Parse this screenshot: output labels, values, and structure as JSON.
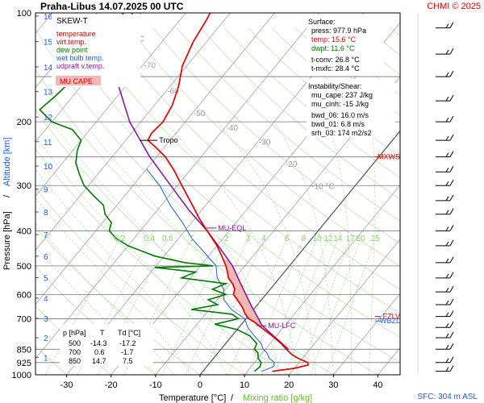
{
  "header": {
    "title": "Praha-Libus   14.07.2025 00 UTC",
    "credit": "CHMI © 2025"
  },
  "legend": {
    "chart_type": "SKEW-T",
    "items": [
      {
        "label": "temperature",
        "color": "#e00000"
      },
      {
        "label": "virt.temp.",
        "color": "#e00000"
      },
      {
        "label": "dew point",
        "color": "#007a00"
      },
      {
        "label": "wet bulb temp.",
        "color": "#1f5fd6"
      },
      {
        "label": "udpraft v.temp.",
        "color": "#8a1a9b"
      }
    ],
    "cape_badge": "MU CAPE"
  },
  "surface": {
    "heading": "Surface:",
    "press": "press: 977.9 hPa",
    "temp": "temp: 15.6 °C",
    "dwpt": "dwpt: 11.6 °C",
    "tconv": "t-conv: 26.8 °C",
    "tmxfc": "t-mxfc: 28.4 °C"
  },
  "instability": {
    "heading": "Instability/Shear:",
    "items": [
      "mu_cape: 237 J/kg",
      "mu_cinh: -15 J/kg",
      "bwd_06: 16.0 m/s",
      "bwd_01: 6.8 m/s",
      "srh_03: 174 m2/s2"
    ]
  },
  "level_table": {
    "headers": [
      "p [hPa]",
      "T",
      "Td [°C]"
    ],
    "rows": [
      [
        "500",
        "-14.3",
        "-17.2"
      ],
      [
        "700",
        "0.6",
        "-1.7"
      ],
      [
        "850",
        "14.7",
        "7.5"
      ]
    ]
  },
  "footer": {
    "sfc": "SFC: 304 m ASL"
  },
  "chart_data": {
    "type": "line",
    "title": "Praha-Libus   14.07.2025 00 UTC",
    "xlabel": "Temperature [°C]",
    "xlabel_sep": "/",
    "xlabel2": "Mixing ratio [g/kg]",
    "ylabel": "Pressure [hPa]",
    "ylabel_sep": "/",
    "ylabel2": "Altitude [km]",
    "xlim": [
      -37,
      45
    ],
    "ylim": [
      1000,
      100
    ],
    "y_scale": "log",
    "grid": true,
    "x_ticks": [
      -30,
      -20,
      -10,
      0,
      10,
      20,
      30,
      40
    ],
    "p_ticks": [
      100,
      200,
      300,
      400,
      500,
      600,
      700,
      850,
      925,
      1000
    ],
    "km_ticks": [
      {
        "km": "1",
        "p": 895
      },
      {
        "km": "2",
        "p": 790
      },
      {
        "km": "3",
        "p": 698
      },
      {
        "km": "4",
        "p": 614
      },
      {
        "km": "5",
        "p": 539
      },
      {
        "km": "6",
        "p": 470
      },
      {
        "km": "7",
        "p": 410
      },
      {
        "km": "8",
        "p": 355
      },
      {
        "km": "9",
        "p": 307
      },
      {
        "km": "10",
        "p": 265
      },
      {
        "km": "11",
        "p": 227
      },
      {
        "km": "12",
        "p": 194
      },
      {
        "km": "13",
        "p": 165
      },
      {
        "km": "14",
        "p": 141
      },
      {
        "km": "15",
        "p": 120
      },
      {
        "km": "16",
        "p": 102
      }
    ],
    "isotherm_labels": [
      {
        "t": -80,
        "label": "-80 °C"
      },
      {
        "t": -70,
        "label": "-70"
      },
      {
        "t": -60,
        "label": "-60"
      },
      {
        "t": -50,
        "label": "-50"
      },
      {
        "t": -40,
        "label": "-40"
      },
      {
        "t": -30,
        "label": "-30"
      },
      {
        "t": -20,
        "label": "-20"
      },
      {
        "t": -10,
        "label": "-10 °C"
      }
    ],
    "mixing_ratio_labels": [
      "0.2",
      "0.4",
      "0.6",
      "1",
      "2",
      "3",
      "4",
      "6",
      "8",
      "10",
      "12",
      "14",
      "17",
      "20",
      "25"
    ],
    "mixing_ratios": [
      0.2,
      0.4,
      0.6,
      1,
      2,
      3,
      4,
      6,
      8,
      10,
      12,
      14,
      17,
      20,
      25
    ],
    "series": [
      {
        "name": "temperature",
        "color": "#e00000",
        "points": [
          [
            978,
            15.6
          ],
          [
            960,
            20
          ],
          [
            940,
            22.5
          ],
          [
            925,
            22
          ],
          [
            900,
            19
          ],
          [
            880,
            17
          ],
          [
            850,
            14.7
          ],
          [
            820,
            12.5
          ],
          [
            780,
            9
          ],
          [
            740,
            5
          ],
          [
            715,
            2.5
          ],
          [
            700,
            0.6
          ],
          [
            680,
            -1
          ],
          [
            650,
            -3
          ],
          [
            620,
            -5.5
          ],
          [
            600,
            -7.3
          ],
          [
            580,
            -8
          ],
          [
            560,
            -9.5
          ],
          [
            540,
            -11.5
          ],
          [
            520,
            -12.8
          ],
          [
            500,
            -14.3
          ],
          [
            470,
            -17
          ],
          [
            440,
            -20
          ],
          [
            400,
            -25
          ],
          [
            370,
            -29
          ],
          [
            340,
            -33
          ],
          [
            300,
            -39
          ],
          [
            270,
            -44
          ],
          [
            250,
            -48
          ],
          [
            235,
            -52
          ],
          [
            225,
            -55
          ],
          [
            215,
            -55.5
          ],
          [
            200,
            -55
          ],
          [
            180,
            -56
          ],
          [
            160,
            -58
          ],
          [
            140,
            -61
          ],
          [
            120,
            -63
          ],
          [
            105,
            -64
          ],
          [
            100,
            -64.5
          ]
        ]
      },
      {
        "name": "dew point",
        "color": "#007a00",
        "points": [
          [
            978,
            11.6
          ],
          [
            950,
            12
          ],
          [
            925,
            11.5
          ],
          [
            900,
            10
          ],
          [
            870,
            9
          ],
          [
            850,
            7.5
          ],
          [
            820,
            7
          ],
          [
            780,
            4
          ],
          [
            750,
            0
          ],
          [
            725,
            -6
          ],
          [
            700,
            -1.7
          ],
          [
            680,
            -4
          ],
          [
            660,
            -14
          ],
          [
            640,
            -9
          ],
          [
            620,
            -12
          ],
          [
            600,
            -9
          ],
          [
            580,
            -13
          ],
          [
            560,
            -11
          ],
          [
            540,
            -22
          ],
          [
            520,
            -20
          ],
          [
            505,
            -30
          ],
          [
            500,
            -17.2
          ],
          [
            490,
            -24
          ],
          [
            470,
            -32
          ],
          [
            455,
            -36
          ],
          [
            440,
            -40
          ],
          [
            420,
            -44
          ],
          [
            400,
            -47
          ],
          [
            380,
            -48
          ],
          [
            360,
            -51
          ],
          [
            340,
            -53
          ],
          [
            320,
            -57
          ],
          [
            300,
            -61
          ],
          [
            280,
            -64
          ],
          [
            260,
            -67
          ],
          [
            240,
            -69
          ],
          [
            225,
            -70
          ],
          [
            210,
            -74
          ],
          [
            200,
            -80
          ],
          [
            185,
            -85
          ],
          [
            170,
            -84
          ],
          [
            150,
            -83
          ],
          [
            130,
            -82
          ],
          [
            115,
            -83
          ],
          [
            100,
            -84
          ]
        ]
      },
      {
        "name": "wet bulb temp.",
        "color": "#1f5fd6",
        "points": [
          [
            978,
            13.2
          ],
          [
            950,
            15
          ],
          [
            925,
            14.5
          ],
          [
            900,
            12.5
          ],
          [
            870,
            11
          ],
          [
            850,
            9.5
          ],
          [
            820,
            8
          ],
          [
            780,
            5
          ],
          [
            740,
            2
          ],
          [
            700,
            -0.3
          ],
          [
            660,
            -5
          ],
          [
            620,
            -8.5
          ],
          [
            580,
            -10.5
          ],
          [
            540,
            -14
          ],
          [
            500,
            -16.5
          ],
          [
            460,
            -21.5
          ],
          [
            420,
            -27
          ],
          [
            380,
            -32
          ],
          [
            340,
            -38
          ],
          [
            300,
            -44
          ],
          [
            270,
            -50
          ]
        ]
      },
      {
        "name": "udpraft v.temp.",
        "color": "#8a1a9b",
        "points": [
          [
            850,
            15.2
          ],
          [
            800,
            11
          ],
          [
            760,
            7.5
          ],
          [
            730,
            4.8
          ],
          [
            700,
            2.8
          ],
          [
            650,
            -0.8
          ],
          [
            600,
            -4.5
          ],
          [
            550,
            -8.5
          ],
          [
            500,
            -12.8
          ],
          [
            450,
            -18.5
          ],
          [
            400,
            -25
          ],
          [
            350,
            -33
          ],
          [
            300,
            -41.5
          ],
          [
            250,
            -51.5
          ],
          [
            200,
            -62.5
          ],
          [
            150,
            -74
          ],
          [
            100,
            -82
          ]
        ]
      }
    ],
    "cape_region": {
      "p_from": 730,
      "p_to": 480,
      "color": "#f2b8b8"
    },
    "markers": [
      {
        "label": "Tropo",
        "p": 225,
        "t": -55
      },
      {
        "label": "MU-EQL",
        "p": 393,
        "t": -24.5
      },
      {
        "label": "MU-LFC",
        "p": 732,
        "t": 4.8
      }
    ],
    "right_labels": [
      {
        "label": "MXWS",
        "p": 250,
        "color": "#e00000"
      },
      {
        "label": "FZLV",
        "p": 690,
        "color": "#e00000"
      },
      {
        "label": "WBZL",
        "p": 710,
        "color": "#1f5fd6"
      }
    ],
    "wind_barbs": [
      {
        "p": 110
      },
      {
        "p": 130
      },
      {
        "p": 150
      },
      {
        "p": 175
      },
      {
        "p": 200
      },
      {
        "p": 225
      },
      {
        "p": 250
      },
      {
        "p": 275
      },
      {
        "p": 300
      },
      {
        "p": 330
      },
      {
        "p": 360
      },
      {
        "p": 400
      },
      {
        "p": 440
      },
      {
        "p": 490
      },
      {
        "p": 540
      },
      {
        "p": 590
      },
      {
        "p": 640
      },
      {
        "p": 690
      },
      {
        "p": 740
      },
      {
        "p": 790
      },
      {
        "p": 850
      },
      {
        "p": 925
      },
      {
        "p": 978
      }
    ]
  }
}
